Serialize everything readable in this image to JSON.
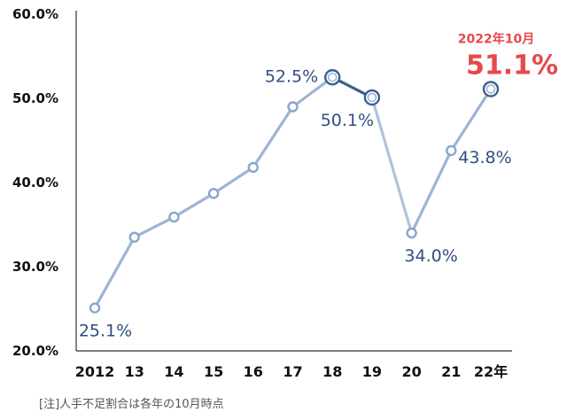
{
  "chart_data": {
    "type": "line",
    "categories": [
      "2012",
      "13",
      "14",
      "15",
      "16",
      "17",
      "18",
      "19",
      "20",
      "21",
      "22年"
    ],
    "values": [
      25.1,
      33.5,
      35.9,
      38.7,
      41.8,
      49.0,
      52.5,
      50.1,
      34.0,
      43.8,
      51.1
    ],
    "ylim": [
      20,
      60
    ],
    "y_ticks": [
      "20.0%",
      "30.0%",
      "40.0%",
      "50.0%",
      "60.0%"
    ],
    "data_labels": [
      {
        "index": 0,
        "text": "25.1%"
      },
      {
        "index": 6,
        "text": "52.5%"
      },
      {
        "index": 7,
        "text": "50.1%"
      },
      {
        "index": 8,
        "text": "34.0%"
      },
      {
        "index": 9,
        "text": "43.8%"
      }
    ],
    "highlight": {
      "index": 10,
      "date_text": "2022年10月",
      "value_text": "51.1%"
    },
    "note": "[注]人手不足割合は各年の10月時点",
    "colors": {
      "line_light": "#9cb4d6",
      "line_dark": "#3d5f8f",
      "marker_stroke": "#8aa6cc",
      "label": "#2f4f7f",
      "highlight": "#e8474c",
      "axis": "#333333"
    }
  }
}
